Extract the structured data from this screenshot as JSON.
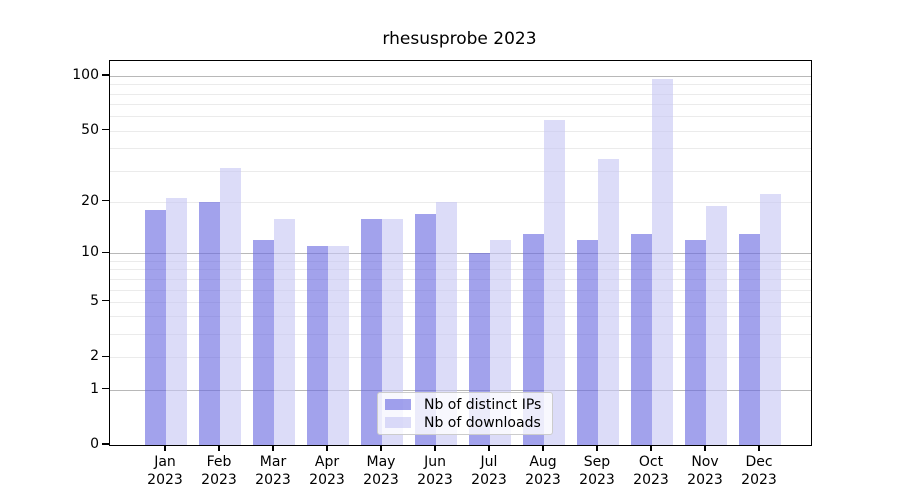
{
  "title": "rhesusprobe 2023",
  "chart_data": {
    "type": "bar",
    "title": "rhesusprobe 2023",
    "categories": [
      "Jan",
      "Feb",
      "Mar",
      "Apr",
      "May",
      "Jun",
      "Jul",
      "Aug",
      "Sep",
      "Oct",
      "Nov",
      "Dec"
    ],
    "year_label": "2023",
    "series": [
      {
        "name": "Nb of distinct IPs",
        "color": "#6969e0",
        "fill_opacity": 0.62,
        "values": [
          18,
          20,
          12,
          11,
          16,
          17,
          10,
          13,
          12,
          13,
          12,
          13
        ]
      },
      {
        "name": "Nb of downloads",
        "color": "#c7c7f4",
        "fill_opacity": 0.62,
        "values": [
          21,
          31,
          16,
          11,
          16,
          20,
          12,
          57,
          35,
          96,
          19,
          22
        ]
      }
    ],
    "xlabel": "",
    "ylabel": "",
    "yscale": "log1p",
    "ylim": [
      0,
      121
    ],
    "yticks": [
      0,
      1,
      2,
      5,
      10,
      20,
      50,
      100
    ],
    "major_gridlines": [
      1,
      10,
      100
    ],
    "minor_gridlines": [
      2,
      3,
      4,
      5,
      6,
      7,
      8,
      9,
      20,
      30,
      40,
      50,
      60,
      70,
      80,
      90
    ],
    "grid_major_color": "#b8b8b8",
    "grid_minor_color": "#ebebeb",
    "legend_position": "lower center",
    "grid": true
  }
}
